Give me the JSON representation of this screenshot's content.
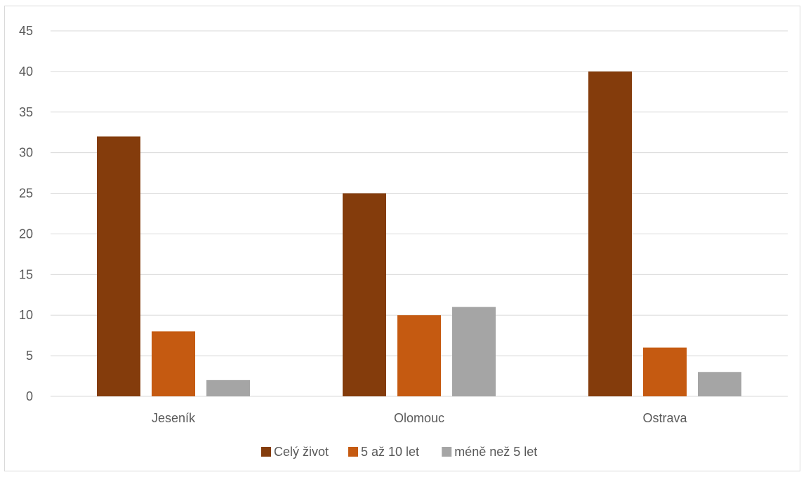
{
  "chart_data": {
    "type": "bar",
    "categories": [
      "Jeseník",
      "Olomouc",
      "Ostrava"
    ],
    "series": [
      {
        "name": "Celý život",
        "values": [
          32,
          25,
          40
        ],
        "color": "#843C0C"
      },
      {
        "name": "5 až 10 let",
        "values": [
          8,
          10,
          6
        ],
        "color": "#C55A11"
      },
      {
        "name": "méně než 5 let",
        "values": [
          2,
          11,
          3
        ],
        "color": "#A5A5A5"
      }
    ],
    "ylim": [
      0,
      45
    ],
    "yticks": [
      0,
      5,
      10,
      15,
      20,
      25,
      30,
      35,
      40,
      45
    ],
    "grid": true,
    "legend_position": "bottom",
    "title": "",
    "xlabel": "",
    "ylabel": ""
  }
}
